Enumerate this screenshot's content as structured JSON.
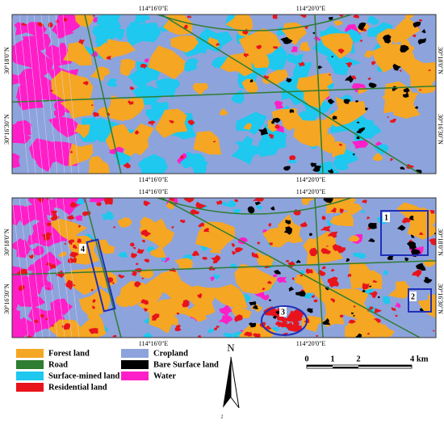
{
  "top_map": {
    "x_labels_top": [
      "114°16'0\"E",
      "114°20'0\"E"
    ],
    "x_labels_bottom": [
      "114°16'0\"E",
      "114°20'0\"E"
    ],
    "y_labels_left": [
      "30°18'0\"N",
      "30°16'30\"N"
    ],
    "y_labels_right": [
      "30°18'0\"N",
      "30°16'30\"N"
    ]
  },
  "bottom_map": {
    "x_labels_top": [
      "114°16'0\"E",
      "114°20'0\"E"
    ],
    "x_labels_bottom": [
      "114°16'0\"E",
      "114°20'0\"E"
    ],
    "y_labels_left": [
      "30°18'0\"N",
      "30°16'30\"N"
    ],
    "y_labels_right": [
      "30°18'0\"N",
      "30°16'30\"N"
    ],
    "markers": [
      "1",
      "2",
      "3",
      "4"
    ]
  },
  "legend": [
    {
      "label": "Forest land",
      "color": "#f5a623"
    },
    {
      "label": "Road",
      "color": "#2e7d32"
    },
    {
      "label": "Surface-mined land",
      "color": "#1ec8ef"
    },
    {
      "label": "Residential land",
      "color": "#e8141c"
    },
    {
      "label": "Cropland",
      "color": "#8da3dc"
    },
    {
      "label": "Bare Surface land",
      "color": "#000000"
    },
    {
      "label": "Water",
      "color": "#ff1fc8"
    }
  ],
  "north": "N",
  "scale_bar": {
    "labels": [
      "0",
      "1",
      "2",
      "4 km"
    ]
  },
  "footer": "2"
}
